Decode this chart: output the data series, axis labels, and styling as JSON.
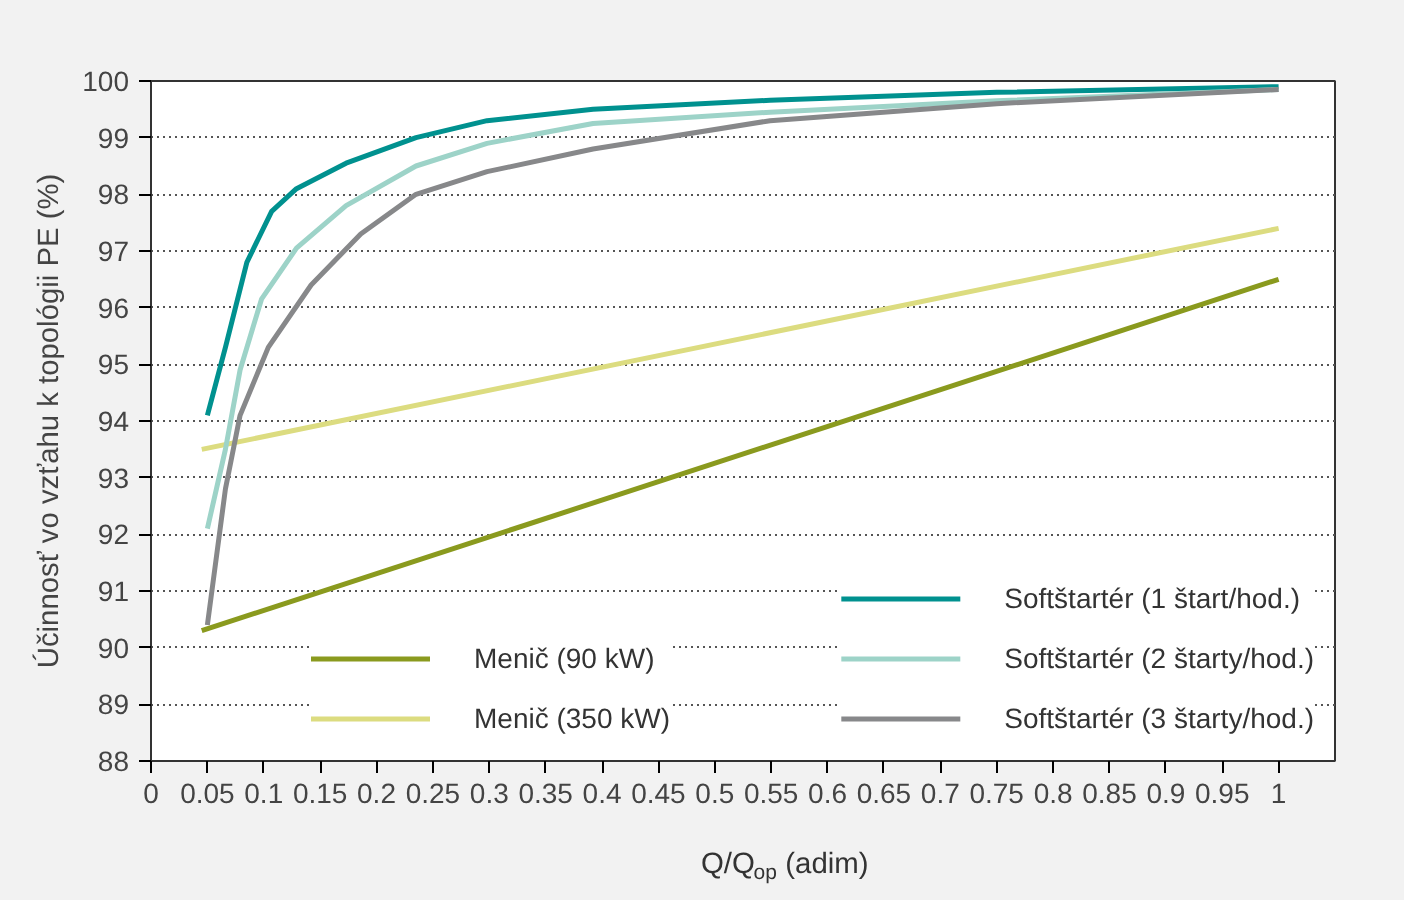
{
  "chart_data": {
    "type": "line",
    "xlabel": "Q/Q$_{op}$ (adim)",
    "ylabel": "Účinnosť vo vzťahu k topológii PE (%)",
    "xlim": [
      0,
      1.05
    ],
    "xticks": [
      0,
      0.05,
      0.1,
      0.15,
      0.2,
      0.25,
      0.3,
      0.35,
      0.4,
      0.45,
      0.5,
      0.55,
      0.6,
      0.65,
      0.7,
      0.75,
      0.8,
      0.85,
      0.9,
      0.95,
      1
    ],
    "ylim": [
      88,
      100
    ],
    "yticks": [
      88,
      89,
      90,
      91,
      92,
      93,
      94,
      95,
      96,
      97,
      98,
      99,
      100
    ],
    "grid": "y",
    "legend": "bottom right",
    "line_style": "solid",
    "series": [
      {
        "name": "Menič (90 kW)",
        "color": "#8a9a1e",
        "x": [
          0.045,
          1.0
        ],
        "values": [
          90.3,
          96.5
        ]
      },
      {
        "name": "Menič (350 kW)",
        "color": "#dcdc80",
        "x": [
          0.045,
          1.0
        ],
        "values": [
          93.5,
          97.4
        ]
      },
      {
        "name": "Softštartér (1 štart/hod.)",
        "color": "#00918f",
        "x": [
          0.05,
          0.066,
          0.085,
          0.107,
          0.129,
          0.173,
          0.235,
          0.298,
          0.392,
          0.549,
          0.75,
          1.0
        ],
        "values": [
          94.1,
          95.3,
          96.8,
          97.7,
          98.1,
          98.55,
          99.0,
          99.3,
          99.5,
          99.66,
          99.8,
          99.9
        ]
      },
      {
        "name": "Softštartér (2 štarty/hod.)",
        "color": "#9dd3c8",
        "x": [
          0.05,
          0.066,
          0.079,
          0.098,
          0.129,
          0.173,
          0.235,
          0.298,
          0.392,
          0.549,
          0.75,
          1.0
        ],
        "values": [
          92.1,
          93.5,
          94.9,
          96.15,
          97.05,
          97.8,
          98.5,
          98.9,
          99.25,
          99.45,
          99.65,
          99.85
        ]
      },
      {
        "name": "Softštartér (3 štarty/hod.)",
        "color": "#87888a",
        "x": [
          0.05,
          0.066,
          0.079,
          0.104,
          0.142,
          0.186,
          0.235,
          0.298,
          0.392,
          0.549,
          0.75,
          1.0
        ],
        "values": [
          90.4,
          92.8,
          94.1,
          95.3,
          96.4,
          97.3,
          98.0,
          98.4,
          98.8,
          99.3,
          99.6,
          99.85
        ]
      }
    ]
  }
}
